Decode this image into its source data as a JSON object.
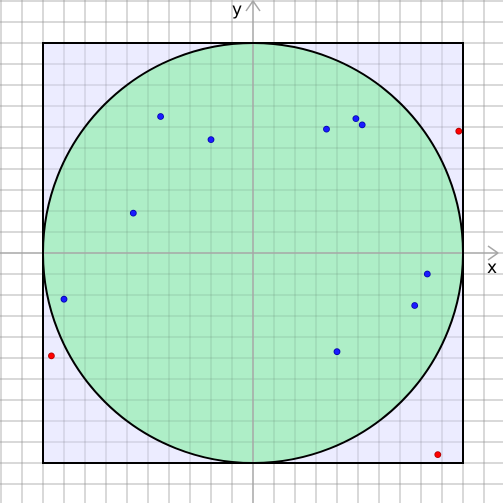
{
  "colors": {
    "background": "#ffffff",
    "grid": "#cccccc",
    "axis": "#a6a6a6",
    "square_fill": "#e6e6ff",
    "square_stroke": "#000000",
    "circle_fill": "#a3eebd",
    "circle_stroke": "#000000",
    "inside_point": "#1a1aff",
    "outside_point": "#ff0000"
  },
  "axes": {
    "x_label": "x",
    "y_label": "y",
    "x_range": [
      -12,
      12
    ],
    "y_range": [
      -12,
      12
    ],
    "grid_step": 1
  },
  "square": {
    "half_side": 10
  },
  "circle": {
    "radius": 10
  },
  "points": [
    {
      "x": -4.4,
      "y": 6.5,
      "inside": true
    },
    {
      "x": -2.0,
      "y": 5.4,
      "inside": true
    },
    {
      "x": -5.7,
      "y": 1.9,
      "inside": true
    },
    {
      "x": -9.0,
      "y": -2.2,
      "inside": true
    },
    {
      "x": 3.5,
      "y": 5.9,
      "inside": true
    },
    {
      "x": 4.9,
      "y": 6.4,
      "inside": true
    },
    {
      "x": 5.2,
      "y": 6.1,
      "inside": true
    },
    {
      "x": 8.3,
      "y": -1.0,
      "inside": true
    },
    {
      "x": 7.7,
      "y": -2.5,
      "inside": true
    },
    {
      "x": 4.0,
      "y": -4.7,
      "inside": true
    },
    {
      "x": 9.8,
      "y": 5.8,
      "inside": false
    },
    {
      "x": -9.6,
      "y": -4.9,
      "inside": false
    },
    {
      "x": 8.8,
      "y": -9.6,
      "inside": false
    }
  ]
}
